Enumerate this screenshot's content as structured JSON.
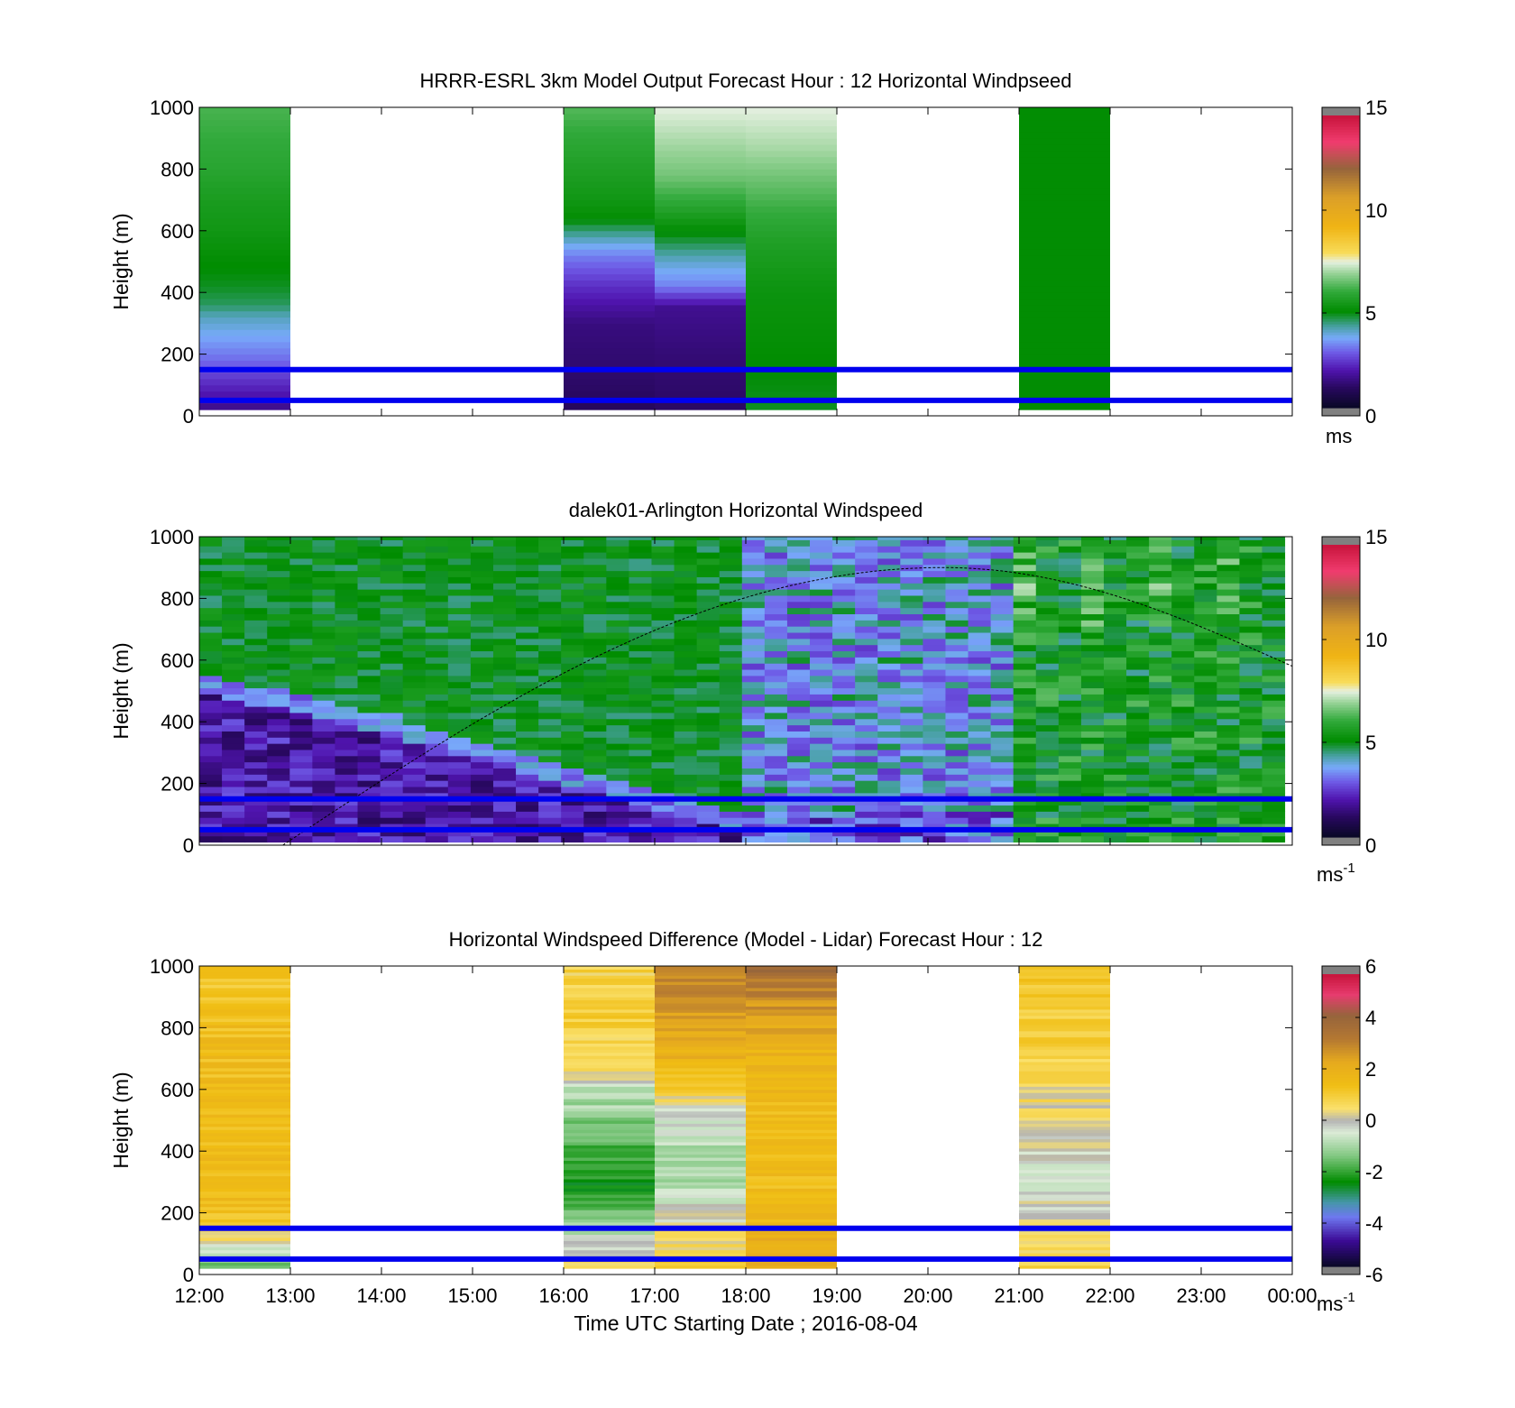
{
  "figure": {
    "xlabel": "Time UTC  Starting Date ; 2016-08-04",
    "xticks": [
      "12:00",
      "13:00",
      "14:00",
      "15:00",
      "16:00",
      "17:00",
      "18:00",
      "19:00",
      "20:00",
      "21:00",
      "22:00",
      "23:00",
      "00:00"
    ],
    "ylabel": "Height (m)",
    "yticks": [
      "0",
      "200",
      "400",
      "600",
      "800",
      "1000"
    ]
  },
  "panels": [
    {
      "title": "HRRR-ESRL 3km Model Output   Forecast Hour : 12 Horizontal Windpseed",
      "colorbar": {
        "ticks": [
          "0",
          "5",
          "10",
          "15"
        ],
        "unit": "ms",
        "unit_sup": ""
      }
    },
    {
      "title": "dalek01-Arlington  Horizontal Windspeed",
      "colorbar": {
        "ticks": [
          "0",
          "5",
          "10",
          "15"
        ],
        "unit": "ms",
        "unit_sup": "-1"
      }
    },
    {
      "title": "Horizontal Windspeed Difference (Model - Lidar) Forecast Hour : 12",
      "colorbar": {
        "ticks": [
          "-6",
          "-4",
          "-2",
          "0",
          "2",
          "4",
          "6"
        ],
        "unit": "ms",
        "unit_sup": "-1"
      }
    }
  ],
  "chart_data": [
    {
      "type": "heatmap",
      "title": "HRRR-ESRL 3km Model Output   Forecast Hour : 12 Horizontal Windpseed",
      "xlabel": "",
      "ylabel": "Height (m)",
      "xlim_hours": [
        12,
        24
      ],
      "ylim": [
        0,
        1000
      ],
      "colorbar_range": [
        0,
        15
      ],
      "colorbar_unit": "ms",
      "columns": [
        {
          "start": "12:00",
          "end": "13:00",
          "speed_profile": [
            [
              20,
              1.5
            ],
            [
              100,
              2.2
            ],
            [
              180,
              3.0
            ],
            [
              260,
              3.6
            ],
            [
              320,
              4.0
            ],
            [
              360,
              4.5
            ],
            [
              420,
              4.8
            ],
            [
              500,
              5.0
            ],
            [
              600,
              5.3
            ],
            [
              700,
              5.5
            ],
            [
              800,
              5.8
            ],
            [
              900,
              6.0
            ],
            [
              1000,
              6.2
            ]
          ]
        },
        {
          "start": "16:00",
          "end": "17:00",
          "speed_profile": [
            [
              20,
              1.0
            ],
            [
              150,
              1.2
            ],
            [
              300,
              1.4
            ],
            [
              420,
              2.3
            ],
            [
              520,
              3.2
            ],
            [
              560,
              3.8
            ],
            [
              640,
              5.0
            ],
            [
              700,
              5.3
            ],
            [
              800,
              5.6
            ],
            [
              900,
              5.9
            ],
            [
              1000,
              6.3
            ]
          ]
        },
        {
          "start": "17:00",
          "end": "18:00",
          "speed_profile": [
            [
              20,
              1.1
            ],
            [
              200,
              1.3
            ],
            [
              350,
              1.6
            ],
            [
              420,
              3.2
            ],
            [
              500,
              3.9
            ],
            [
              580,
              4.8
            ],
            [
              680,
              5.8
            ],
            [
              780,
              6.6
            ],
            [
              880,
              7.0
            ],
            [
              1000,
              7.5
            ]
          ]
        },
        {
          "start": "18:00",
          "end": "19:00",
          "speed_profile": [
            [
              20,
              4.8
            ],
            [
              200,
              5.0
            ],
            [
              400,
              5.2
            ],
            [
              560,
              5.6
            ],
            [
              660,
              6.0
            ],
            [
              760,
              6.5
            ],
            [
              860,
              7.0
            ],
            [
              1000,
              7.5
            ]
          ]
        },
        {
          "start": "21:00",
          "end": "22:00",
          "speed_profile": [
            [
              20,
              5.0
            ],
            [
              500,
              5.0
            ],
            [
              1000,
              5.0
            ]
          ]
        }
      ],
      "reference_heights_m": [
        50,
        150
      ],
      "grid": false
    },
    {
      "type": "heatmap",
      "title": "dalek01-Arlington  Horizontal Windspeed",
      "xlabel": "",
      "ylabel": "Height (m)",
      "xlim_hours": [
        12,
        24
      ],
      "ylim": [
        0,
        1000
      ],
      "colorbar_range": [
        0,
        15
      ],
      "colorbar_unit": "ms-1",
      "time_range": [
        "12:00",
        "23:55"
      ],
      "pattern": "low wind (1-3 m/s) below a boundary falling from ~550 m at 12:00 to ~100 m at 18:00; 5 m/s aloft; 2-4 m/s columns 18:00-21:00; 4.5-6.5 m/s after 21:00",
      "boundary_height_m": [
        [
          12,
          550
        ],
        [
          14,
          420
        ],
        [
          16,
          250
        ],
        [
          18,
          80
        ],
        [
          24,
          60
        ]
      ],
      "dashed_curve": {
        "start": [
          "12:55",
          0
        ],
        "peak": [
          "20:10",
          900
        ],
        "end": [
          "00:00",
          580
        ]
      },
      "reference_heights_m": [
        50,
        150
      ],
      "grid": false
    },
    {
      "type": "heatmap",
      "title": "Horizontal Windspeed Difference (Model - Lidar) Forecast Hour : 12",
      "xlabel": "Time UTC  Starting Date ; 2016-08-04",
      "ylabel": "Height (m)",
      "xlim_hours": [
        12,
        24
      ],
      "ylim": [
        0,
        1000
      ],
      "colorbar_range": [
        -6,
        6
      ],
      "colorbar_unit": "ms-1",
      "columns": [
        {
          "start": "12:00",
          "end": "13:00",
          "diff_profile": [
            [
              20,
              -2.0
            ],
            [
              60,
              -1.0
            ],
            [
              120,
              0.5
            ],
            [
              200,
              1.5
            ],
            [
              400,
              1.6
            ],
            [
              600,
              1.5
            ],
            [
              800,
              1.5
            ],
            [
              1000,
              1.2
            ]
          ]
        },
        {
          "start": "16:00",
          "end": "17:00",
          "diff_profile": [
            [
              20,
              1.0
            ],
            [
              80,
              0.0
            ],
            [
              140,
              -0.8
            ],
            [
              300,
              -2.5
            ],
            [
              420,
              -1.8
            ],
            [
              600,
              -0.8
            ],
            [
              660,
              0.5
            ],
            [
              800,
              1.0
            ],
            [
              1000,
              0.8
            ]
          ]
        },
        {
          "start": "17:00",
          "end": "18:00",
          "diff_profile": [
            [
              20,
              1.2
            ],
            [
              150,
              0.2
            ],
            [
              300,
              -1.0
            ],
            [
              450,
              -0.8
            ],
            [
              540,
              0.0
            ],
            [
              600,
              1.0
            ],
            [
              700,
              2.0
            ],
            [
              850,
              2.8
            ],
            [
              1000,
              3.2
            ]
          ]
        },
        {
          "start": "18:00",
          "end": "19:00",
          "diff_profile": [
            [
              20,
              2.6
            ],
            [
              200,
              1.6
            ],
            [
              500,
              1.6
            ],
            [
              700,
              1.8
            ],
            [
              850,
              2.6
            ],
            [
              950,
              3.4
            ],
            [
              1000,
              4.4
            ]
          ]
        },
        {
          "start": "21:00",
          "end": "22:00",
          "diff_profile": [
            [
              20,
              1.0
            ],
            [
              300,
              -0.5
            ],
            [
              500,
              0.3
            ],
            [
              700,
              0.8
            ],
            [
              900,
              1.2
            ],
            [
              1000,
              1.4
            ]
          ]
        }
      ],
      "reference_heights_m": [
        50,
        150
      ],
      "grid": false
    }
  ]
}
